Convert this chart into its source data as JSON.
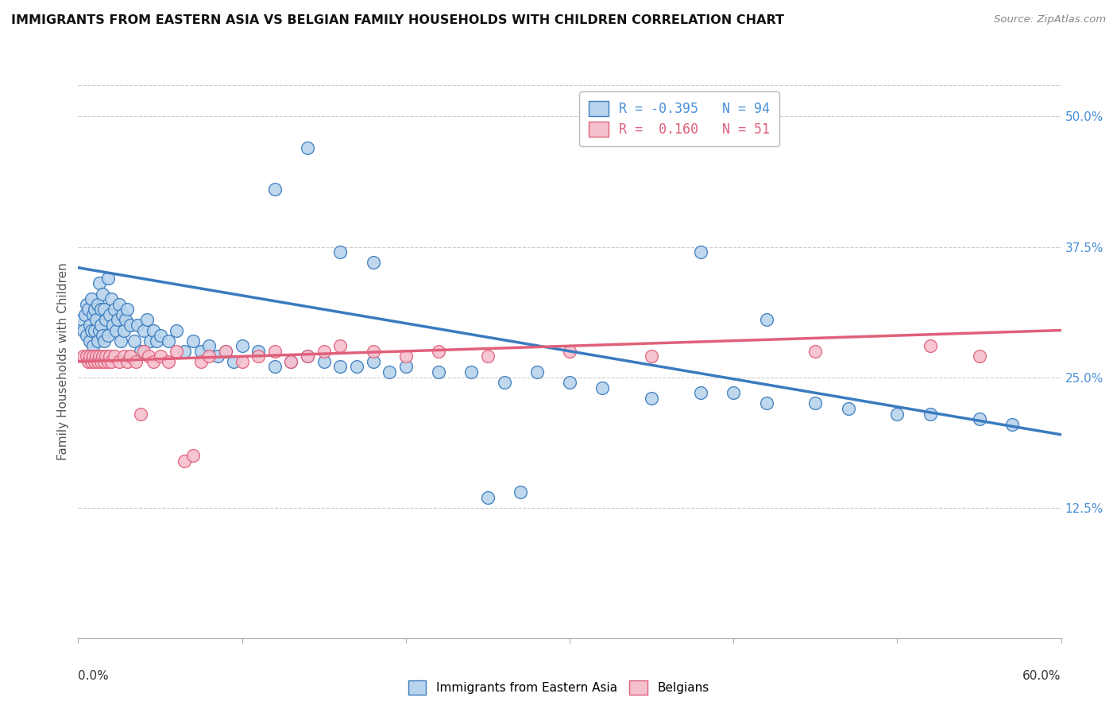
{
  "title": "IMMIGRANTS FROM EASTERN ASIA VS BELGIAN FAMILY HOUSEHOLDS WITH CHILDREN CORRELATION CHART",
  "source": "Source: ZipAtlas.com",
  "ylabel": "Family Households with Children",
  "legend_label1": "Immigrants from Eastern Asia",
  "legend_label2": "Belgians",
  "r1": "-0.395",
  "n1": "94",
  "r2": "0.160",
  "n2": "51",
  "color_blue": "#b8d4ed",
  "color_blue_line": "#3a7bbf",
  "color_pink": "#f5c0ce",
  "color_pink_line": "#e0607a",
  "color_blue_text": "#4a90d9",
  "xlim": [
    0.0,
    0.6
  ],
  "ylim": [
    0.0,
    0.53
  ],
  "xtick_values": [
    0.0,
    0.1,
    0.2,
    0.3,
    0.4,
    0.5,
    0.6
  ],
  "ytick_values": [
    0.0,
    0.125,
    0.25,
    0.375,
    0.5
  ],
  "ytick_labels": [
    "",
    "12.5%",
    "25.0%",
    "37.5%",
    "50.0%"
  ],
  "blue_line_x0": 0.0,
  "blue_line_y0": 0.355,
  "blue_line_x1": 0.6,
  "blue_line_y1": 0.195,
  "pink_line_x0": 0.0,
  "pink_line_y0": 0.265,
  "pink_line_x1": 0.6,
  "pink_line_y1": 0.295,
  "scatter_blue_x": [
    0.002,
    0.003,
    0.004,
    0.005,
    0.005,
    0.006,
    0.007,
    0.007,
    0.008,
    0.008,
    0.009,
    0.009,
    0.01,
    0.01,
    0.011,
    0.012,
    0.012,
    0.013,
    0.013,
    0.014,
    0.014,
    0.015,
    0.015,
    0.016,
    0.016,
    0.017,
    0.018,
    0.018,
    0.019,
    0.02,
    0.021,
    0.022,
    0.023,
    0.024,
    0.025,
    0.026,
    0.027,
    0.028,
    0.029,
    0.03,
    0.032,
    0.034,
    0.036,
    0.038,
    0.04,
    0.042,
    0.044,
    0.046,
    0.048,
    0.05,
    0.055,
    0.06,
    0.065,
    0.07,
    0.075,
    0.08,
    0.085,
    0.09,
    0.095,
    0.1,
    0.11,
    0.12,
    0.13,
    0.14,
    0.15,
    0.16,
    0.17,
    0.18,
    0.19,
    0.2,
    0.22,
    0.24,
    0.26,
    0.28,
    0.3,
    0.32,
    0.35,
    0.38,
    0.4,
    0.42,
    0.45,
    0.47,
    0.5,
    0.52,
    0.55,
    0.57,
    0.16,
    0.18,
    0.38,
    0.42,
    0.14,
    0.12,
    0.25,
    0.27
  ],
  "scatter_blue_y": [
    0.305,
    0.295,
    0.31,
    0.32,
    0.29,
    0.315,
    0.3,
    0.285,
    0.325,
    0.295,
    0.31,
    0.28,
    0.315,
    0.295,
    0.305,
    0.32,
    0.285,
    0.34,
    0.295,
    0.315,
    0.3,
    0.33,
    0.29,
    0.315,
    0.285,
    0.305,
    0.345,
    0.29,
    0.31,
    0.325,
    0.3,
    0.315,
    0.295,
    0.305,
    0.32,
    0.285,
    0.31,
    0.295,
    0.305,
    0.315,
    0.3,
    0.285,
    0.3,
    0.275,
    0.295,
    0.305,
    0.285,
    0.295,
    0.285,
    0.29,
    0.285,
    0.295,
    0.275,
    0.285,
    0.275,
    0.28,
    0.27,
    0.275,
    0.265,
    0.28,
    0.275,
    0.26,
    0.265,
    0.27,
    0.265,
    0.26,
    0.26,
    0.265,
    0.255,
    0.26,
    0.255,
    0.255,
    0.245,
    0.255,
    0.245,
    0.24,
    0.23,
    0.235,
    0.235,
    0.225,
    0.225,
    0.22,
    0.215,
    0.215,
    0.21,
    0.205,
    0.37,
    0.36,
    0.37,
    0.305,
    0.47,
    0.43,
    0.135,
    0.14
  ],
  "scatter_pink_x": [
    0.003,
    0.005,
    0.006,
    0.007,
    0.008,
    0.009,
    0.01,
    0.011,
    0.012,
    0.013,
    0.014,
    0.015,
    0.016,
    0.017,
    0.018,
    0.019,
    0.02,
    0.022,
    0.025,
    0.028,
    0.03,
    0.032,
    0.035,
    0.038,
    0.04,
    0.043,
    0.046,
    0.05,
    0.055,
    0.06,
    0.065,
    0.07,
    0.075,
    0.08,
    0.09,
    0.1,
    0.11,
    0.12,
    0.13,
    0.14,
    0.15,
    0.16,
    0.18,
    0.2,
    0.22,
    0.25,
    0.3,
    0.35,
    0.45,
    0.52,
    0.55
  ],
  "scatter_pink_y": [
    0.27,
    0.27,
    0.265,
    0.27,
    0.265,
    0.27,
    0.265,
    0.27,
    0.265,
    0.27,
    0.265,
    0.27,
    0.265,
    0.27,
    0.265,
    0.27,
    0.265,
    0.27,
    0.265,
    0.27,
    0.265,
    0.27,
    0.265,
    0.215,
    0.275,
    0.27,
    0.265,
    0.27,
    0.265,
    0.275,
    0.17,
    0.175,
    0.265,
    0.27,
    0.275,
    0.265,
    0.27,
    0.275,
    0.265,
    0.27,
    0.275,
    0.28,
    0.275,
    0.27,
    0.275,
    0.27,
    0.275,
    0.27,
    0.275,
    0.28,
    0.27
  ],
  "background_color": "#ffffff",
  "grid_color": "#cccccc"
}
